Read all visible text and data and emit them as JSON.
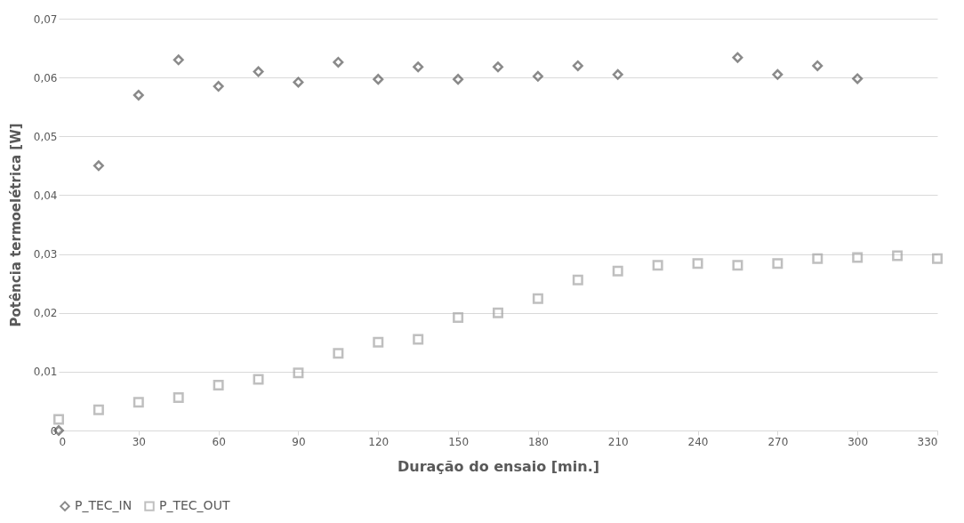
{
  "chart_data": {
    "type": "scatter",
    "xlabel": "Duração do ensaio [min.]",
    "ylabel": "Potência termoelétrica [W]",
    "xlim": [
      0,
      330
    ],
    "xticks": [
      0,
      30,
      60,
      90,
      120,
      150,
      180,
      210,
      240,
      270,
      300,
      330
    ],
    "ylim": [
      0,
      0.07
    ],
    "yticks": [
      0,
      {
        "value": 0.01,
        "label": "0,01"
      },
      {
        "value": 0.02,
        "label": "0,02"
      },
      {
        "value": 0.03,
        "label": "0,03"
      },
      {
        "value": 0.04,
        "label": "0,04"
      },
      {
        "value": 0.05,
        "label": "0,05"
      },
      {
        "value": 0.06,
        "label": "0,06"
      },
      {
        "value": 0.07,
        "label": "0,07"
      }
    ],
    "grid": "y",
    "legend": "bottom",
    "series": [
      {
        "name": "P_TEC_IN",
        "color": "#595959",
        "marker": "diamond",
        "x": [
          0,
          15,
          30,
          45,
          60,
          75,
          90,
          105,
          120,
          135,
          150,
          165,
          180,
          195,
          210,
          255,
          270,
          285,
          300
        ],
        "values": [
          0,
          0.045,
          0.057,
          0.063,
          0.0585,
          0.061,
          0.0592,
          0.0626,
          0.0597,
          0.0618,
          0.0597,
          0.0618,
          0.0602,
          0.062,
          0.0605,
          0.0634,
          0.0605,
          0.062,
          0.0598
        ]
      },
      {
        "name": "P_TEC_OUT",
        "color": "#a5a5a5",
        "marker": "square",
        "x": [
          0,
          15,
          30,
          45,
          60,
          75,
          90,
          105,
          120,
          135,
          150,
          165,
          180,
          195,
          210,
          225,
          240,
          255,
          270,
          285,
          300,
          315,
          330
        ],
        "values": [
          0.0019,
          0.0035,
          0.0048,
          0.0056,
          0.0077,
          0.0087,
          0.0098,
          0.0131,
          0.015,
          0.0155,
          0.0192,
          0.02,
          0.0224,
          0.0256,
          0.0271,
          0.0281,
          0.0284,
          0.0281,
          0.0284,
          0.0292,
          0.0294,
          0.0297,
          0.0292
        ]
      }
    ]
  }
}
